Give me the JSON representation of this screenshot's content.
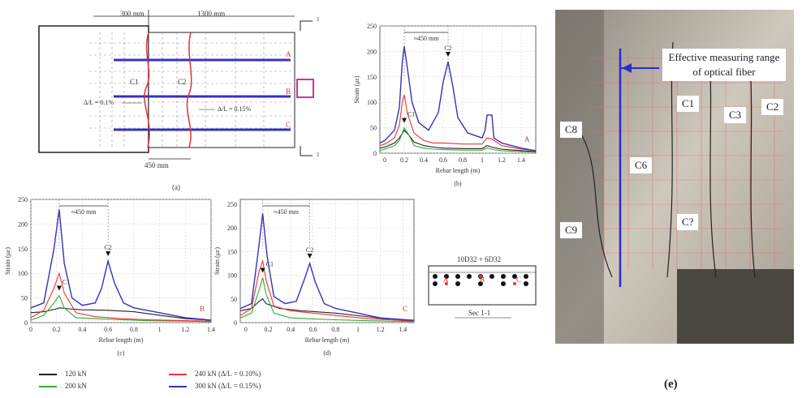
{
  "panel_a": {
    "dim_top_left": "300 mm",
    "dim_top_right": "1300 mm",
    "dim_bottom": "450 mm",
    "rebar_labels": [
      "A",
      "B",
      "C"
    ],
    "crack_labels": [
      "C1",
      "C2"
    ],
    "ratio_left": "Δ/L = 0.1%",
    "ratio_right": "Δ/L = 0.15%",
    "section_mark": "1",
    "caption": "(a)"
  },
  "section": {
    "top_text": "10D32 + 6D32",
    "bottom_text": "Sec 1-1",
    "points": [
      "A",
      "B",
      "C"
    ]
  },
  "legend": {
    "items": [
      {
        "label": "120 kN",
        "color": "#222222"
      },
      {
        "label": "200 kN",
        "color": "#33aa33"
      },
      {
        "label": "240 kN (Δ/L = 0.10%)",
        "color": "#ee3333"
      },
      {
        "label": "300 kN (Δ/L = 0.15%)",
        "color": "#3333bb"
      }
    ]
  },
  "photo": {
    "caption": "(e)",
    "callout": "Effective measuring range of optical fiber",
    "labels": [
      "C8",
      "C1",
      "C3",
      "C2",
      "C6",
      "C?",
      "C9"
    ]
  },
  "chart_data": [
    {
      "type": "line",
      "panel": "(b)",
      "rebar": "A",
      "xlabel": "Rebar length (m)",
      "ylabel": "Strain (με)",
      "xlim": [
        -0.05,
        1.55
      ],
      "ylim": [
        0,
        250
      ],
      "xticks": [
        "0",
        "0.2",
        "0.4",
        "0.6",
        "0.8",
        "1",
        "1.2",
        "1.4"
      ],
      "yticks": [
        "0",
        "50",
        "100",
        "150",
        "200",
        "250"
      ],
      "span_label": "≈450 mm",
      "peak_labels": [
        {
          "text": "C1",
          "x": 0.2
        },
        {
          "text": "C2",
          "x": 0.65
        }
      ],
      "grid": true,
      "series": [
        {
          "name": "120 kN",
          "x": [
            -0.05,
            0.0,
            0.1,
            0.15,
            0.2,
            0.25,
            0.3,
            0.4,
            0.5,
            0.6,
            0.8,
            1.0,
            1.05,
            1.1,
            1.2,
            1.4,
            1.55
          ],
          "values": [
            10,
            12,
            20,
            30,
            45,
            35,
            22,
            15,
            12,
            10,
            9,
            9,
            15,
            12,
            8,
            5,
            3
          ]
        },
        {
          "name": "200 kN",
          "x": [
            -0.05,
            0.0,
            0.1,
            0.15,
            0.2,
            0.25,
            0.3,
            0.4,
            0.5,
            0.6,
            0.8,
            1.0,
            1.05,
            1.1,
            1.2,
            1.4,
            1.55
          ],
          "values": [
            5,
            8,
            15,
            25,
            50,
            35,
            15,
            10,
            8,
            7,
            6,
            6,
            10,
            8,
            5,
            3,
            2
          ]
        },
        {
          "name": "240 kN (Δ/L = 0.10%)",
          "x": [
            -0.05,
            0.0,
            0.1,
            0.15,
            0.18,
            0.2,
            0.23,
            0.3,
            0.4,
            0.5,
            0.6,
            0.8,
            1.0,
            1.05,
            1.1,
            1.2,
            1.4,
            1.55
          ],
          "values": [
            15,
            18,
            30,
            55,
            100,
            115,
            80,
            40,
            25,
            20,
            20,
            18,
            18,
            30,
            28,
            15,
            8,
            5
          ]
        },
        {
          "name": "300 kN (Δ/L = 0.15%)",
          "x": [
            -0.05,
            0.0,
            0.1,
            0.15,
            0.18,
            0.2,
            0.23,
            0.28,
            0.35,
            0.45,
            0.55,
            0.6,
            0.65,
            0.7,
            0.75,
            0.85,
            1.0,
            1.03,
            1.05,
            1.1,
            1.12,
            1.2,
            1.4,
            1.55
          ],
          "values": [
            20,
            25,
            45,
            90,
            180,
            210,
            170,
            100,
            60,
            45,
            80,
            140,
            180,
            130,
            70,
            40,
            30,
            45,
            75,
            75,
            30,
            20,
            10,
            5
          ]
        }
      ]
    },
    {
      "type": "line",
      "panel": "(c)",
      "rebar": "B",
      "xlabel": "Rebar length (m)",
      "ylabel": "Strain (με)",
      "xlim": [
        0,
        1.4
      ],
      "ylim": [
        0,
        250
      ],
      "xticks": [
        "0",
        "0.2",
        "0.4",
        "0.6",
        "0.8",
        "1",
        "1.2",
        "1.4"
      ],
      "yticks": [
        "0",
        "50",
        "100",
        "150",
        "200",
        "250"
      ],
      "span_label": "≈450 mm",
      "peak_labels": [
        {
          "text": "C1",
          "x": 0.22
        },
        {
          "text": "C2",
          "x": 0.6
        }
      ],
      "grid": true,
      "series": [
        {
          "name": "120 kN",
          "x": [
            0.0,
            0.1,
            0.2,
            0.22,
            0.3,
            0.4,
            0.6,
            0.8,
            1.0,
            1.2,
            1.4
          ],
          "values": [
            20,
            22,
            28,
            30,
            28,
            26,
            25,
            22,
            15,
            8,
            5
          ]
        },
        {
          "name": "200 kN",
          "x": [
            0.0,
            0.1,
            0.18,
            0.22,
            0.26,
            0.35,
            0.5,
            0.7,
            0.9,
            1.2,
            1.4
          ],
          "values": [
            5,
            15,
            40,
            55,
            30,
            10,
            8,
            6,
            4,
            3,
            2
          ]
        },
        {
          "name": "240 kN (Δ/L = 0.10%)",
          "x": [
            0.0,
            0.1,
            0.18,
            0.22,
            0.26,
            0.35,
            0.5,
            0.7,
            0.9,
            1.2,
            1.4
          ],
          "values": [
            10,
            25,
            70,
            100,
            60,
            20,
            12,
            8,
            6,
            4,
            3
          ]
        },
        {
          "name": "300 kN (Δ/L = 0.15%)",
          "x": [
            0.0,
            0.1,
            0.18,
            0.22,
            0.26,
            0.32,
            0.4,
            0.5,
            0.55,
            0.6,
            0.65,
            0.72,
            0.8,
            1.0,
            1.2,
            1.4
          ],
          "values": [
            30,
            40,
            150,
            230,
            120,
            50,
            35,
            40,
            70,
            125,
            80,
            40,
            30,
            20,
            10,
            5
          ]
        }
      ]
    },
    {
      "type": "line",
      "panel": "(d)",
      "rebar": "C",
      "xlabel": "Rebar length (m)",
      "ylabel": "Strain (με)",
      "xlim": [
        -0.05,
        1.5
      ],
      "ylim": [
        0,
        260
      ],
      "xticks": [
        "0",
        "0.2",
        "0.4",
        "0.6",
        "0.8",
        "1",
        "1.2",
        "1.4"
      ],
      "yticks": [
        "0",
        "50",
        "100",
        "150",
        "200",
        "250"
      ],
      "span_label": "≈450 mm",
      "peak_labels": [
        {
          "text": "C1",
          "x": 0.15
        },
        {
          "text": "C2",
          "x": 0.57
        }
      ],
      "grid": true,
      "series": [
        {
          "name": "120 kN",
          "x": [
            -0.05,
            0.05,
            0.12,
            0.15,
            0.18,
            0.3,
            0.5,
            0.8,
            1.1,
            1.3,
            1.5
          ],
          "values": [
            25,
            30,
            45,
            50,
            40,
            30,
            25,
            20,
            12,
            6,
            3
          ]
        },
        {
          "name": "200 kN",
          "x": [
            -0.05,
            0.05,
            0.12,
            0.15,
            0.18,
            0.25,
            0.4,
            0.8,
            1.1,
            1.5
          ],
          "values": [
            10,
            20,
            70,
            95,
            60,
            20,
            10,
            6,
            4,
            2
          ]
        },
        {
          "name": "240 kN (Δ/L = 0.10%)",
          "x": [
            -0.05,
            0.05,
            0.12,
            0.15,
            0.18,
            0.25,
            0.4,
            0.6,
            0.8,
            1.1,
            1.5
          ],
          "values": [
            15,
            30,
            110,
            130,
            90,
            35,
            25,
            20,
            15,
            8,
            4
          ]
        },
        {
          "name": "300 kN (Δ/L = 0.15%)",
          "x": [
            -0.05,
            0.05,
            0.11,
            0.15,
            0.19,
            0.25,
            0.35,
            0.45,
            0.52,
            0.57,
            0.62,
            0.7,
            0.8,
            1.0,
            1.2,
            1.5
          ],
          "values": [
            30,
            40,
            150,
            230,
            140,
            55,
            40,
            45,
            90,
            125,
            85,
            40,
            30,
            20,
            10,
            5
          ]
        }
      ]
    }
  ]
}
